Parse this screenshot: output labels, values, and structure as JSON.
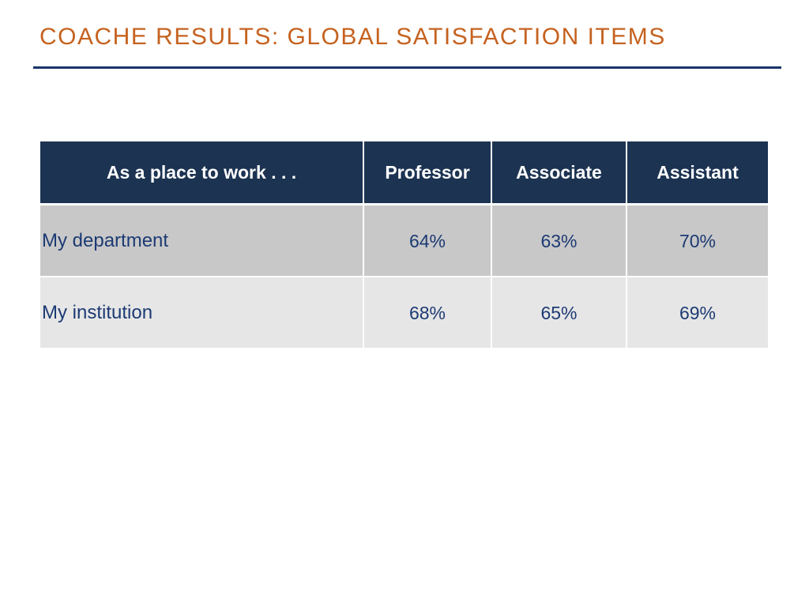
{
  "slide": {
    "title": "COACHE RESULTS: GLOBAL SATISFACTION ITEMS"
  },
  "table": {
    "header": {
      "label": "As a place to work . . .",
      "columns": [
        "Professor",
        "Associate",
        "Assistant"
      ]
    },
    "rows": [
      {
        "label": "My department",
        "values": [
          "64%",
          "63%",
          "70%"
        ]
      },
      {
        "label": "My institution",
        "values": [
          "68%",
          "65%",
          "69%"
        ]
      }
    ]
  },
  "colors": {
    "title": "#c5621f",
    "rule": "#1a3469",
    "header_bg": "#1c3352",
    "row_dark": "#c8c8c8",
    "row_light": "#e6e6e6",
    "body_text": "#1c3a73"
  }
}
